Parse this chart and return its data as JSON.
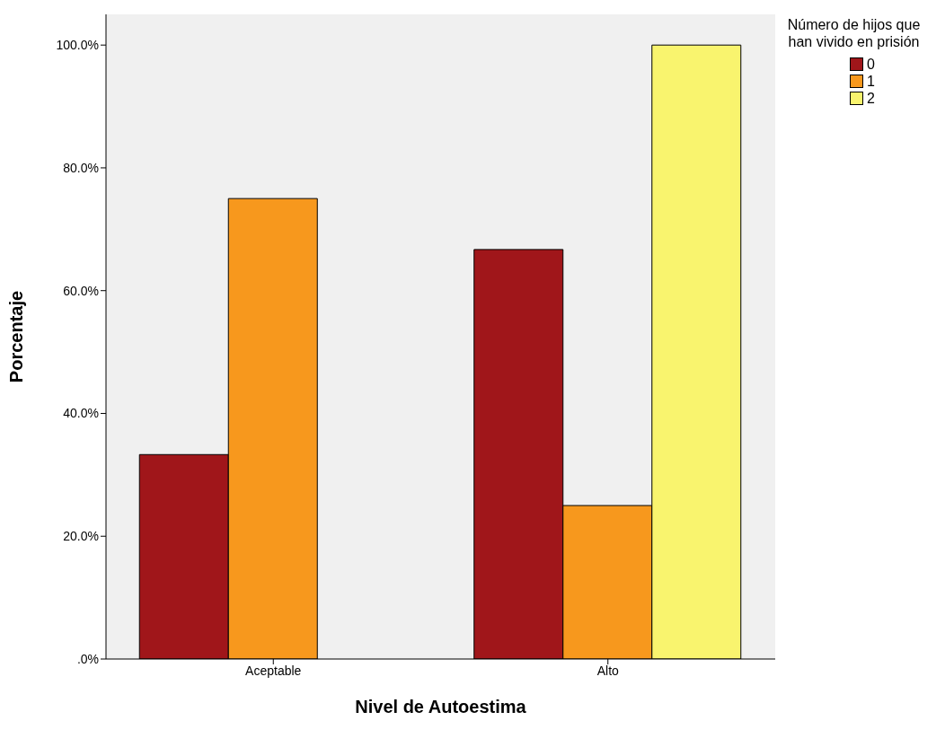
{
  "chart_data": {
    "type": "bar",
    "xlabel": "Nivel de Autoestima",
    "ylabel": "Porcentaje",
    "legend_title": "Número de hijos que han vivido en prisión",
    "categories": [
      "Aceptable",
      "Alto"
    ],
    "series": [
      {
        "name": "0",
        "color": "#a0161a",
        "values": [
          33.3,
          66.7
        ]
      },
      {
        "name": "1",
        "color": "#f7981d",
        "values": [
          75,
          25
        ]
      },
      {
        "name": "2",
        "color": "#f9f46e",
        "values": [
          0,
          100
        ]
      }
    ],
    "ylim": [
      0,
      105
    ],
    "yticks": [
      {
        "value": 0,
        "label": ".0%"
      },
      {
        "value": 20,
        "label": "20.0%"
      },
      {
        "value": 40,
        "label": "40.0%"
      },
      {
        "value": 60,
        "label": "60.0%"
      },
      {
        "value": 80,
        "label": "80.0%"
      },
      {
        "value": 100,
        "label": "100.0%"
      }
    ],
    "grid": false,
    "legend": "top right"
  }
}
